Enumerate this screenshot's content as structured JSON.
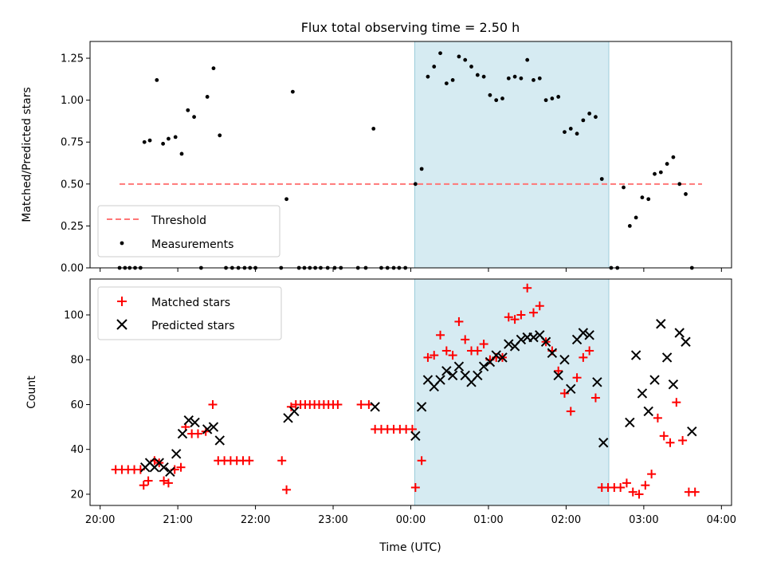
{
  "chart_data": [
    {
      "type": "scatter",
      "title": "Flux total observing time = 2.50 h",
      "xlabel": "",
      "ylabel": "Matched/Predicted stars",
      "x_unit": "hours since 20:00 UTC",
      "xlim": [
        -0.13,
        8.13
      ],
      "ylim": [
        0,
        1.35
      ],
      "yticks": [
        0,
        0.25,
        0.5,
        0.75,
        1.0,
        1.25
      ],
      "ytick_labels": [
        "0.00",
        "0.25",
        "0.50",
        "0.75",
        "1.00",
        "1.25"
      ],
      "shaded_span": [
        4.05,
        6.55
      ],
      "threshold": {
        "name": "Threshold",
        "y": 0.5,
        "x_range": [
          0.25,
          7.75
        ],
        "color": "#ff7777"
      },
      "legend_position": "lower-left",
      "series": [
        {
          "name": "Measurements",
          "color": "#000000",
          "points": [
            [
              0.25,
              0
            ],
            [
              0.32,
              0
            ],
            [
              0.38,
              0
            ],
            [
              0.45,
              0
            ],
            [
              0.52,
              0
            ],
            [
              0.57,
              0.75
            ],
            [
              0.64,
              0.76
            ],
            [
              0.73,
              1.12
            ],
            [
              0.81,
              0.74
            ],
            [
              0.88,
              0.77
            ],
            [
              0.97,
              0.78
            ],
            [
              1.05,
              0.68
            ],
            [
              1.13,
              0.94
            ],
            [
              1.21,
              0.9
            ],
            [
              1.3,
              0
            ],
            [
              1.38,
              1.02
            ],
            [
              1.46,
              1.19
            ],
            [
              1.54,
              0.79
            ],
            [
              1.62,
              0
            ],
            [
              1.7,
              0
            ],
            [
              1.78,
              0
            ],
            [
              1.86,
              0
            ],
            [
              1.93,
              0
            ],
            [
              2.0,
              0
            ],
            [
              2.33,
              0
            ],
            [
              2.4,
              0.41
            ],
            [
              2.48,
              1.05
            ],
            [
              2.56,
              0
            ],
            [
              2.63,
              0
            ],
            [
              2.7,
              0
            ],
            [
              2.77,
              0
            ],
            [
              2.84,
              0
            ],
            [
              2.93,
              0
            ],
            [
              3.02,
              0
            ],
            [
              3.1,
              0
            ],
            [
              3.32,
              0
            ],
            [
              3.42,
              0
            ],
            [
              3.52,
              0.83
            ],
            [
              3.62,
              0
            ],
            [
              3.7,
              0
            ],
            [
              3.78,
              0
            ],
            [
              3.85,
              0
            ],
            [
              3.93,
              0
            ],
            [
              4.06,
              0.5
            ],
            [
              4.14,
              0.59
            ],
            [
              4.22,
              1.14
            ],
            [
              4.3,
              1.2
            ],
            [
              4.38,
              1.28
            ],
            [
              4.46,
              1.1
            ],
            [
              4.54,
              1.12
            ],
            [
              4.62,
              1.26
            ],
            [
              4.7,
              1.24
            ],
            [
              4.78,
              1.2
            ],
            [
              4.86,
              1.15
            ],
            [
              4.94,
              1.14
            ],
            [
              5.02,
              1.03
            ],
            [
              5.1,
              1.0
            ],
            [
              5.18,
              1.01
            ],
            [
              5.26,
              1.13
            ],
            [
              5.34,
              1.14
            ],
            [
              5.42,
              1.13
            ],
            [
              5.5,
              1.24
            ],
            [
              5.58,
              1.12
            ],
            [
              5.66,
              1.13
            ],
            [
              5.74,
              1.0
            ],
            [
              5.82,
              1.01
            ],
            [
              5.9,
              1.02
            ],
            [
              5.98,
              0.81
            ],
            [
              6.06,
              0.83
            ],
            [
              6.14,
              0.8
            ],
            [
              6.22,
              0.88
            ],
            [
              6.3,
              0.92
            ],
            [
              6.38,
              0.9
            ],
            [
              6.46,
              0.53
            ],
            [
              6.58,
              0
            ],
            [
              6.66,
              0
            ],
            [
              6.74,
              0.48
            ],
            [
              6.82,
              0.25
            ],
            [
              6.9,
              0.3
            ],
            [
              6.98,
              0.42
            ],
            [
              7.06,
              0.41
            ],
            [
              7.14,
              0.56
            ],
            [
              7.22,
              0.57
            ],
            [
              7.3,
              0.62
            ],
            [
              7.38,
              0.66
            ],
            [
              7.46,
              0.5
            ],
            [
              7.54,
              0.44
            ],
            [
              7.62,
              0
            ]
          ]
        }
      ]
    },
    {
      "type": "scatter",
      "title": "",
      "xlabel": "Time (UTC)",
      "ylabel": "Count",
      "x_unit": "hours since 20:00 UTC",
      "xlim": [
        -0.13,
        8.13
      ],
      "ylim": [
        15,
        116
      ],
      "yticks": [
        20,
        40,
        60,
        80,
        100
      ],
      "ytick_labels": [
        "20",
        "40",
        "60",
        "80",
        "100"
      ],
      "xticks": [
        0,
        1,
        2,
        3,
        4,
        5,
        6,
        7,
        8
      ],
      "xtick_labels": [
        "20:00",
        "21:00",
        "22:00",
        "23:00",
        "00:00",
        "01:00",
        "02:00",
        "03:00",
        "04:00"
      ],
      "shaded_span": [
        4.05,
        6.55
      ],
      "legend_position": "upper-left",
      "series": [
        {
          "name": "Matched stars",
          "marker": "plus",
          "color": "#ff0000",
          "points": [
            [
              0.2,
              31
            ],
            [
              0.28,
              31
            ],
            [
              0.36,
              31
            ],
            [
              0.44,
              31
            ],
            [
              0.52,
              31
            ],
            [
              0.56,
              24
            ],
            [
              0.62,
              26
            ],
            [
              0.7,
              35
            ],
            [
              0.76,
              34
            ],
            [
              0.82,
              26
            ],
            [
              0.88,
              25
            ],
            [
              0.96,
              31
            ],
            [
              1.04,
              32
            ],
            [
              1.1,
              50
            ],
            [
              1.18,
              47
            ],
            [
              1.26,
              47
            ],
            [
              1.36,
              48
            ],
            [
              1.45,
              60
            ],
            [
              1.52,
              35
            ],
            [
              1.6,
              35
            ],
            [
              1.68,
              35
            ],
            [
              1.76,
              35
            ],
            [
              1.84,
              35
            ],
            [
              1.92,
              35
            ],
            [
              2.34,
              35
            ],
            [
              2.4,
              22
            ],
            [
              2.46,
              59
            ],
            [
              2.52,
              60
            ],
            [
              2.58,
              60
            ],
            [
              2.64,
              60
            ],
            [
              2.7,
              60
            ],
            [
              2.76,
              60
            ],
            [
              2.82,
              60
            ],
            [
              2.88,
              60
            ],
            [
              2.94,
              60
            ],
            [
              3.0,
              60
            ],
            [
              3.06,
              60
            ],
            [
              3.36,
              60
            ],
            [
              3.46,
              60
            ],
            [
              3.54,
              49
            ],
            [
              3.62,
              49
            ],
            [
              3.7,
              49
            ],
            [
              3.78,
              49
            ],
            [
              3.86,
              49
            ],
            [
              3.94,
              49
            ],
            [
              4.02,
              49
            ],
            [
              4.06,
              23
            ],
            [
              4.14,
              35
            ],
            [
              4.22,
              81
            ],
            [
              4.3,
              82
            ],
            [
              4.38,
              91
            ],
            [
              4.46,
              84
            ],
            [
              4.54,
              82
            ],
            [
              4.62,
              97
            ],
            [
              4.7,
              89
            ],
            [
              4.78,
              84
            ],
            [
              4.86,
              84
            ],
            [
              4.94,
              87
            ],
            [
              5.02,
              80
            ],
            [
              5.1,
              81
            ],
            [
              5.18,
              81
            ],
            [
              5.26,
              99
            ],
            [
              5.34,
              98
            ],
            [
              5.42,
              100
            ],
            [
              5.5,
              112
            ],
            [
              5.58,
              101
            ],
            [
              5.66,
              104
            ],
            [
              5.74,
              88
            ],
            [
              5.82,
              84
            ],
            [
              5.9,
              75
            ],
            [
              5.98,
              65
            ],
            [
              6.06,
              57
            ],
            [
              6.14,
              72
            ],
            [
              6.22,
              81
            ],
            [
              6.3,
              84
            ],
            [
              6.38,
              63
            ],
            [
              6.46,
              23
            ],
            [
              6.54,
              23
            ],
            [
              6.62,
              23
            ],
            [
              6.7,
              23
            ],
            [
              6.78,
              25
            ],
            [
              6.86,
              21
            ],
            [
              6.94,
              20
            ],
            [
              7.02,
              24
            ],
            [
              7.1,
              29
            ],
            [
              7.18,
              54
            ],
            [
              7.26,
              46
            ],
            [
              7.34,
              43
            ],
            [
              7.42,
              61
            ],
            [
              7.5,
              44
            ],
            [
              7.58,
              21
            ],
            [
              7.66,
              21
            ]
          ]
        },
        {
          "name": "Predicted stars",
          "marker": "x",
          "color": "#000000",
          "points": [
            [
              0.58,
              32
            ],
            [
              0.64,
              34
            ],
            [
              0.7,
              32
            ],
            [
              0.76,
              34
            ],
            [
              0.82,
              32
            ],
            [
              0.9,
              30
            ],
            [
              0.98,
              38
            ],
            [
              1.06,
              47
            ],
            [
              1.14,
              53
            ],
            [
              1.22,
              52
            ],
            [
              1.38,
              49
            ],
            [
              1.46,
              50
            ],
            [
              1.54,
              44
            ],
            [
              2.42,
              54
            ],
            [
              2.5,
              57
            ],
            [
              3.54,
              59
            ],
            [
              4.06,
              46
            ],
            [
              4.14,
              59
            ],
            [
              4.22,
              71
            ],
            [
              4.3,
              68
            ],
            [
              4.38,
              71
            ],
            [
              4.46,
              75
            ],
            [
              4.54,
              73
            ],
            [
              4.62,
              77
            ],
            [
              4.7,
              73
            ],
            [
              4.78,
              70
            ],
            [
              4.86,
              73
            ],
            [
              4.94,
              77
            ],
            [
              5.02,
              79
            ],
            [
              5.1,
              82
            ],
            [
              5.18,
              81
            ],
            [
              5.26,
              87
            ],
            [
              5.34,
              86
            ],
            [
              5.42,
              89
            ],
            [
              5.5,
              90
            ],
            [
              5.58,
              90
            ],
            [
              5.66,
              91
            ],
            [
              5.74,
              88
            ],
            [
              5.82,
              83
            ],
            [
              5.9,
              73
            ],
            [
              5.98,
              80
            ],
            [
              6.06,
              67
            ],
            [
              6.14,
              89
            ],
            [
              6.22,
              92
            ],
            [
              6.3,
              91
            ],
            [
              6.4,
              70
            ],
            [
              6.48,
              43
            ],
            [
              6.82,
              52
            ],
            [
              6.9,
              82
            ],
            [
              6.98,
              65
            ],
            [
              7.06,
              57
            ],
            [
              7.14,
              71
            ],
            [
              7.22,
              96
            ],
            [
              7.3,
              81
            ],
            [
              7.38,
              69
            ],
            [
              7.46,
              92
            ],
            [
              7.54,
              88
            ],
            [
              7.62,
              48
            ]
          ]
        }
      ]
    }
  ]
}
